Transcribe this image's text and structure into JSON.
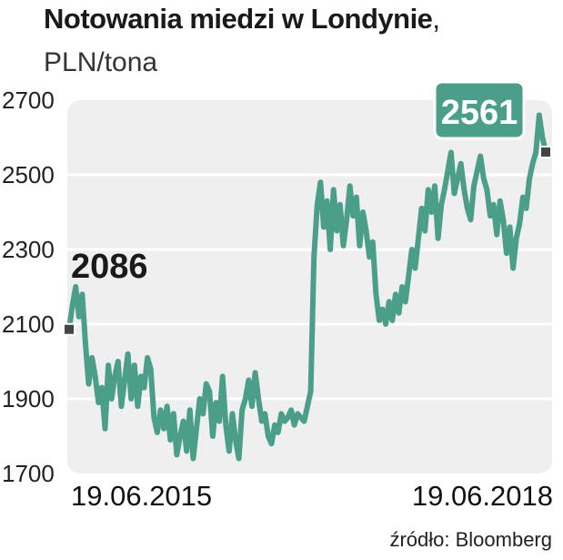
{
  "header": {
    "title": "Notowania miedzi w Londynie",
    "title_suffix": ",",
    "subtitle": "PLN/tona"
  },
  "source": "źródło: Bloomberg",
  "colors": {
    "line": "#4a9e8a",
    "plot_background": "#efefef",
    "gridline": "#ffffff",
    "callout_box": "#4a9e8a",
    "callout_box_text": "#ffffff",
    "marker": "#444444"
  },
  "chart_data": {
    "type": "line",
    "title": "Notowania miedzi w Londynie",
    "ylabel": "PLN/tona",
    "ylim": [
      1700,
      2700
    ],
    "yticks": [
      1700,
      1900,
      2100,
      2300,
      2500,
      2700
    ],
    "grid": true,
    "x_start": "19.06.2015",
    "x_end": "19.06.2018",
    "xtick_labels": [
      "19.06.2015",
      "19.06.2018"
    ],
    "start_value": 2086,
    "end_value": 2561,
    "annotations": [
      {
        "label": "2086",
        "value": 2086,
        "at": "19.06.2015"
      },
      {
        "label": "2561",
        "value": 2561,
        "at": "19.06.2018"
      }
    ],
    "series": [
      {
        "values": [
          2086,
          2150,
          2200,
          2120,
          2180,
          2050,
          1940,
          2010,
          1960,
          1890,
          1930,
          1820,
          1990,
          1900,
          1960,
          2000,
          1880,
          1950,
          2020,
          1900,
          1990,
          1880,
          1960,
          1930,
          2010,
          1980,
          1850,
          1810,
          1870,
          1820,
          1880,
          1790,
          1860,
          1750,
          1800,
          1840,
          1760,
          1870,
          1740,
          1820,
          1900,
          1860,
          1940,
          1920,
          1800,
          1890,
          1840,
          1960,
          1830,
          1760,
          1860,
          1790,
          1740,
          1870,
          1900,
          1950,
          1880,
          1970,
          1900,
          1840,
          1860,
          1800,
          1780,
          1830,
          1810,
          1860,
          1840,
          1850,
          1870,
          1830,
          1860,
          1850,
          1840,
          1880,
          1920,
          2280,
          2420,
          2480,
          2360,
          2430,
          2300,
          2460,
          2350,
          2420,
          2310,
          2380,
          2470,
          2390,
          2440,
          2310,
          2400,
          2350,
          2280,
          2320,
          2180,
          2110,
          2140,
          2100,
          2160,
          2110,
          2180,
          2130,
          2200,
          2160,
          2230,
          2300,
          2250,
          2330,
          2410,
          2350,
          2460,
          2400,
          2470,
          2330,
          2420,
          2460,
          2510,
          2560,
          2450,
          2490,
          2530,
          2460,
          2410,
          2380,
          2470,
          2510,
          2550,
          2490,
          2460,
          2390,
          2420,
          2340,
          2430,
          2380,
          2290,
          2360,
          2250,
          2330,
          2370,
          2440,
          2410,
          2490,
          2530,
          2560,
          2660,
          2600,
          2561
        ]
      }
    ]
  }
}
